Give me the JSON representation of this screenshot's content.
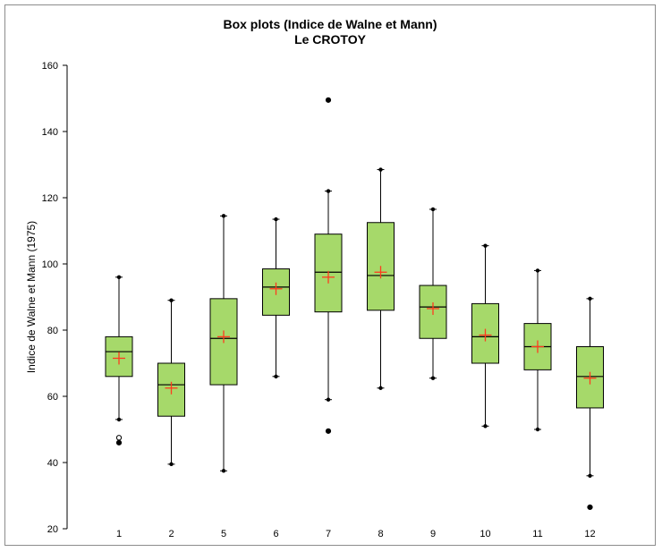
{
  "chart_data": {
    "type": "boxplot",
    "title": "Box plots (Indice de Walne et Mann)",
    "subtitle": "Le CROTOY",
    "ylabel": "Indice de Walne et Mann (1975)",
    "xlabel": "",
    "ylim": [
      20,
      160
    ],
    "yticks": [
      20,
      40,
      60,
      80,
      100,
      120,
      140,
      160
    ],
    "categories": [
      "1",
      "2",
      "5",
      "6",
      "7",
      "8",
      "9",
      "10",
      "11",
      "12"
    ],
    "boxes": [
      {
        "category": "1",
        "min": 53,
        "q1": 66,
        "median": 73.5,
        "q3": 78,
        "max": 96,
        "mean": 71.5,
        "outliers": [
          46,
          47.5
        ]
      },
      {
        "category": "2",
        "min": 39.5,
        "q1": 54,
        "median": 63.5,
        "q3": 70,
        "max": 89,
        "mean": 62.5,
        "outliers": []
      },
      {
        "category": "5",
        "min": 37.5,
        "q1": 63.5,
        "median": 77.5,
        "q3": 89.5,
        "max": 114.5,
        "mean": 78,
        "outliers": []
      },
      {
        "category": "6",
        "min": 66,
        "q1": 84.5,
        "median": 93,
        "q3": 98.5,
        "max": 113.5,
        "mean": 92.5,
        "outliers": []
      },
      {
        "category": "7",
        "min": 59,
        "q1": 85.5,
        "median": 97.5,
        "q3": 109,
        "max": 122,
        "mean": 96,
        "outliers": [
          49.5,
          149.5
        ]
      },
      {
        "category": "8",
        "min": 62.5,
        "q1": 86,
        "median": 96.5,
        "q3": 112.5,
        "max": 128.5,
        "mean": 97.5,
        "outliers": []
      },
      {
        "category": "9",
        "min": 65.5,
        "q1": 77.5,
        "median": 87,
        "q3": 93.5,
        "max": 116.5,
        "mean": 86.5,
        "outliers": []
      },
      {
        "category": "10",
        "min": 51,
        "q1": 70,
        "median": 78,
        "q3": 88,
        "max": 105.5,
        "mean": 78.5,
        "outliers": []
      },
      {
        "category": "11",
        "min": 50,
        "q1": 68,
        "median": 75,
        "q3": 82,
        "max": 98,
        "mean": 75,
        "outliers": []
      },
      {
        "category": "12",
        "min": 36,
        "q1": 56.5,
        "median": 66,
        "q3": 75,
        "max": 89.5,
        "mean": 65.5,
        "outliers": [
          26.5
        ]
      }
    ],
    "colors": {
      "box_fill": "#a6d96a",
      "box_stroke": "#000000",
      "mean_marker": "#ff3b1f",
      "axis": "#000000"
    },
    "grid": false,
    "legend": "none"
  }
}
